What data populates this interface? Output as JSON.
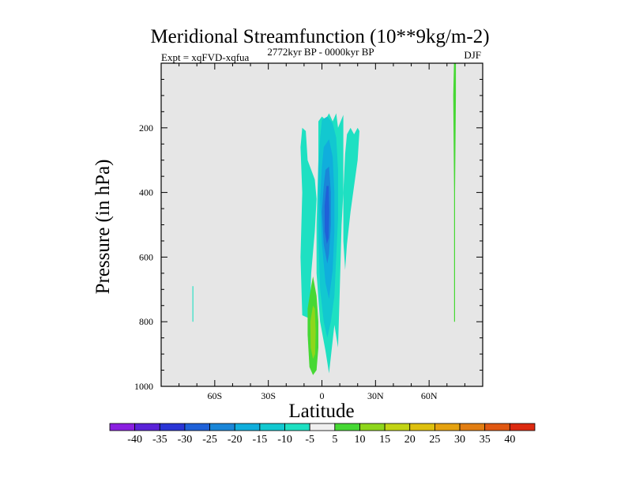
{
  "chart_data": {
    "type": "contour",
    "title": "Meridional Streamfunction (10**9kg/m-2)",
    "subtitle_left": "Expt = xqFVD-xqfua",
    "subtitle_center": "2772kyr BP - 0000kyr BP",
    "subtitle_right": "DJF",
    "xlabel": "Latitude",
    "ylabel": "Pressure (in hPa)",
    "xlim": [
      -90,
      90
    ],
    "ylim": [
      0,
      1000
    ],
    "x_ticks": [
      {
        "value": -60,
        "label": "60S"
      },
      {
        "value": -30,
        "label": "30S"
      },
      {
        "value": 0,
        "label": "0"
      },
      {
        "value": 30,
        "label": "30N"
      },
      {
        "value": 60,
        "label": "60N"
      }
    ],
    "y_ticks": [
      {
        "value": 200,
        "label": "200"
      },
      {
        "value": 400,
        "label": "400"
      },
      {
        "value": 600,
        "label": "600"
      },
      {
        "value": 800,
        "label": "800"
      },
      {
        "value": 1000,
        "label": "1000"
      }
    ],
    "background_color": "#e6e6e6",
    "colorbar": {
      "levels": [
        -40,
        -35,
        -30,
        -25,
        -20,
        -15,
        -10,
        -5,
        5,
        10,
        15,
        20,
        25,
        30,
        35,
        40
      ],
      "colors": [
        "#8a1fe0",
        "#5a23d8",
        "#2a35d6",
        "#1f61d8",
        "#1a86d8",
        "#10aedc",
        "#12c8d0",
        "#1ee0c2",
        "#f0f0f0",
        "#46d834",
        "#8ed61c",
        "#c2d414",
        "#dec00e",
        "#e5a210",
        "#e27e12",
        "#e05812",
        "#dc2a10"
      ]
    },
    "regions": [
      {
        "name": "sh-subtropical-cell",
        "color": "#1ee0c2",
        "points": [
          [
            -11,
            200
          ],
          [
            -9,
            210
          ],
          [
            -8,
            300
          ],
          [
            -4,
            360
          ],
          [
            -3,
            420
          ],
          [
            -4,
            520
          ],
          [
            -6,
            650
          ],
          [
            -7,
            790
          ],
          [
            -11,
            780
          ],
          [
            -12,
            600
          ],
          [
            -11,
            400
          ],
          [
            -12,
            260
          ]
        ]
      },
      {
        "name": "equatorial-outer",
        "color": "#1ee0c2",
        "points": [
          [
            -2,
            180
          ],
          [
            0,
            165
          ],
          [
            2,
            175
          ],
          [
            4,
            155
          ],
          [
            6,
            180
          ],
          [
            8,
            155
          ],
          [
            9,
            200
          ],
          [
            12,
            160
          ],
          [
            12,
            400
          ],
          [
            11,
            500
          ],
          [
            10,
            700
          ],
          [
            9,
            880
          ],
          [
            7,
            810
          ],
          [
            4,
            960
          ],
          [
            2,
            890
          ],
          [
            -1,
            800
          ],
          [
            -3,
            650
          ],
          [
            -3,
            500
          ],
          [
            -2,
            300
          ]
        ]
      },
      {
        "name": "nh-subtropical-cell",
        "color": "#1ee0c2",
        "points": [
          [
            14,
            220
          ],
          [
            16,
            200
          ],
          [
            18,
            220
          ],
          [
            20,
            200
          ],
          [
            21,
            210
          ],
          [
            20,
            300
          ],
          [
            18,
            380
          ],
          [
            16,
            460
          ],
          [
            14,
            560
          ],
          [
            13,
            640
          ],
          [
            12,
            550
          ],
          [
            12,
            400
          ],
          [
            13,
            280
          ]
        ]
      },
      {
        "name": "equatorial-minus-10",
        "color": "#12c8d0",
        "points": [
          [
            0,
            175
          ],
          [
            3,
            165
          ],
          [
            6,
            185
          ],
          [
            8,
            230
          ],
          [
            9,
            330
          ],
          [
            9,
            480
          ],
          [
            8,
            600
          ],
          [
            7,
            720
          ],
          [
            5,
            800
          ],
          [
            3,
            850
          ],
          [
            1,
            800
          ],
          [
            -1,
            700
          ],
          [
            -2,
            550
          ],
          [
            -2,
            330
          ],
          [
            -1,
            230
          ]
        ]
      },
      {
        "name": "equatorial-minus-15",
        "color": "#10aedc",
        "points": [
          [
            1,
            260
          ],
          [
            4,
            235
          ],
          [
            6,
            290
          ],
          [
            7,
            400
          ],
          [
            7,
            520
          ],
          [
            6,
            640
          ],
          [
            4,
            730
          ],
          [
            2,
            680
          ],
          [
            0,
            560
          ],
          [
            -1,
            420
          ],
          [
            0,
            320
          ]
        ]
      },
      {
        "name": "equatorial-minus-20",
        "color": "#1a86d8",
        "points": [
          [
            2,
            330
          ],
          [
            4,
            320
          ],
          [
            5,
            400
          ],
          [
            5,
            500
          ],
          [
            4,
            590
          ],
          [
            3,
            620
          ],
          [
            1,
            560
          ],
          [
            0,
            460
          ],
          [
            1,
            380
          ]
        ]
      },
      {
        "name": "equatorial-minus-25",
        "color": "#1f61d8",
        "points": [
          [
            2.5,
            380
          ],
          [
            3.8,
            380
          ],
          [
            4.1,
            460
          ],
          [
            3.8,
            540
          ],
          [
            2.8,
            560
          ],
          [
            1.6,
            520
          ],
          [
            1.5,
            440
          ]
        ]
      },
      {
        "name": "low-level-cell-outer",
        "color": "#46d834",
        "points": [
          [
            -6,
            690
          ],
          [
            -5,
            660
          ],
          [
            -3,
            720
          ],
          [
            -2,
            800
          ],
          [
            -2,
            880
          ],
          [
            -3,
            950
          ],
          [
            -5,
            965
          ],
          [
            -7,
            940
          ],
          [
            -8,
            840
          ],
          [
            -8,
            760
          ]
        ]
      },
      {
        "name": "low-level-cell-inner",
        "color": "#8ed61c",
        "points": [
          [
            -5,
            750
          ],
          [
            -4,
            760
          ],
          [
            -3.5,
            830
          ],
          [
            -3.8,
            900
          ],
          [
            -5,
            915
          ],
          [
            -6.3,
            880
          ],
          [
            -6.5,
            800
          ]
        ]
      },
      {
        "name": "sh-high-latitude-streak",
        "color": "#1ee0c2",
        "points": [
          [
            -72.5,
            690
          ],
          [
            -72,
            690
          ],
          [
            -72,
            800
          ],
          [
            -72.5,
            800
          ]
        ]
      },
      {
        "name": "nh-polar-streak",
        "color": "#46d834",
        "points": [
          [
            74,
            -15
          ],
          [
            75,
            -15
          ],
          [
            75,
            100
          ],
          [
            74.5,
            400
          ],
          [
            74.5,
            800
          ],
          [
            74,
            800
          ],
          [
            74,
            400
          ],
          [
            73.5,
            100
          ]
        ]
      }
    ]
  }
}
